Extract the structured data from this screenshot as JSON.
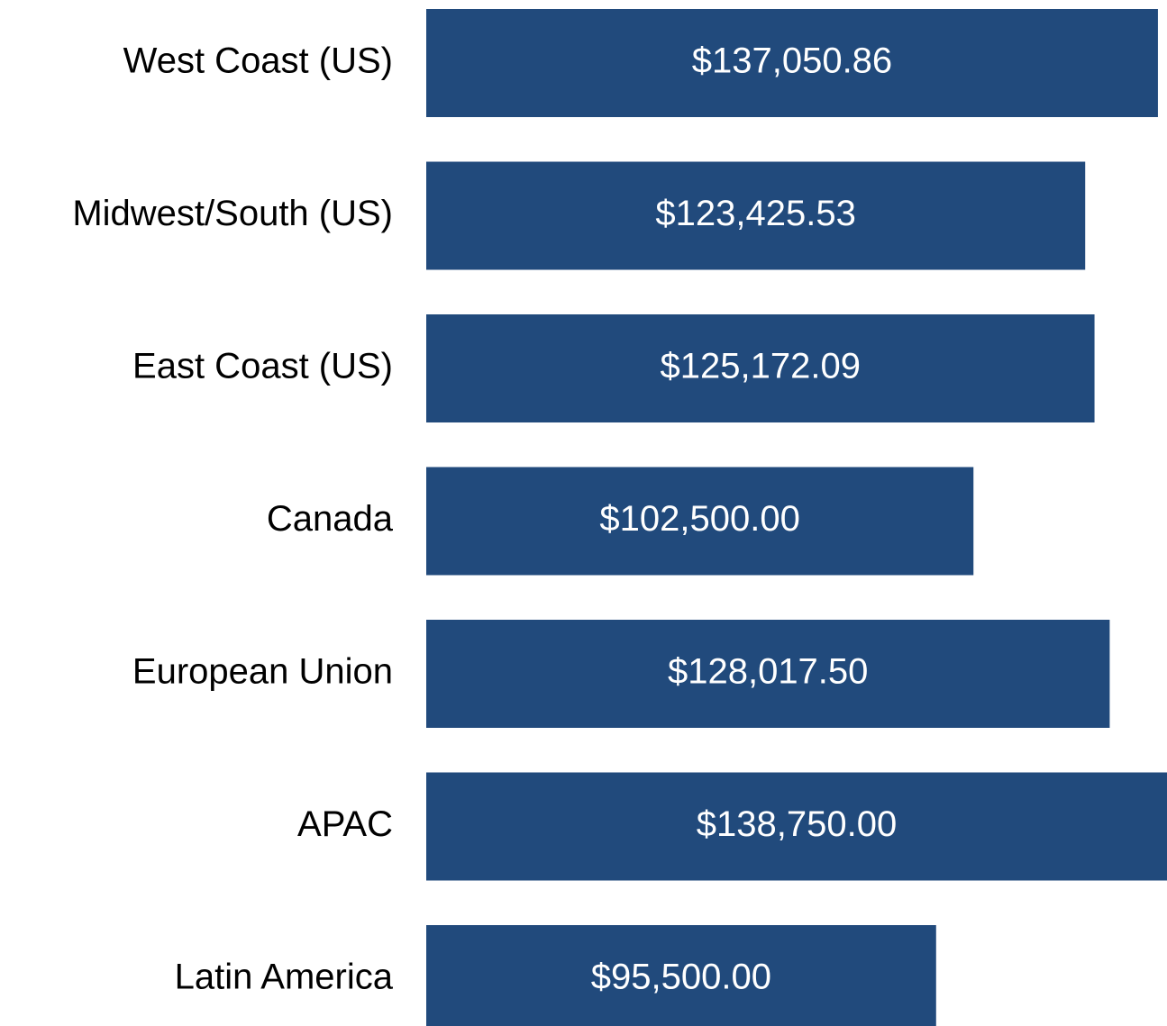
{
  "chart_data": {
    "type": "bar",
    "orientation": "horizontal",
    "categories": [
      "West Coast (US)",
      "Midwest/South (US)",
      "East Coast (US)",
      "Canada",
      "European Union",
      "APAC",
      "Latin America"
    ],
    "values": [
      137050.86,
      123425.53,
      125172.09,
      102500,
      128017.5,
      138750,
      95500
    ],
    "value_labels": [
      "$137,050.86",
      "$123,425.53",
      "$125,172.09",
      "$102,500.00",
      "$128,017.50",
      "$138,750.00",
      "$95,500.00"
    ],
    "color": "#214a7c"
  }
}
